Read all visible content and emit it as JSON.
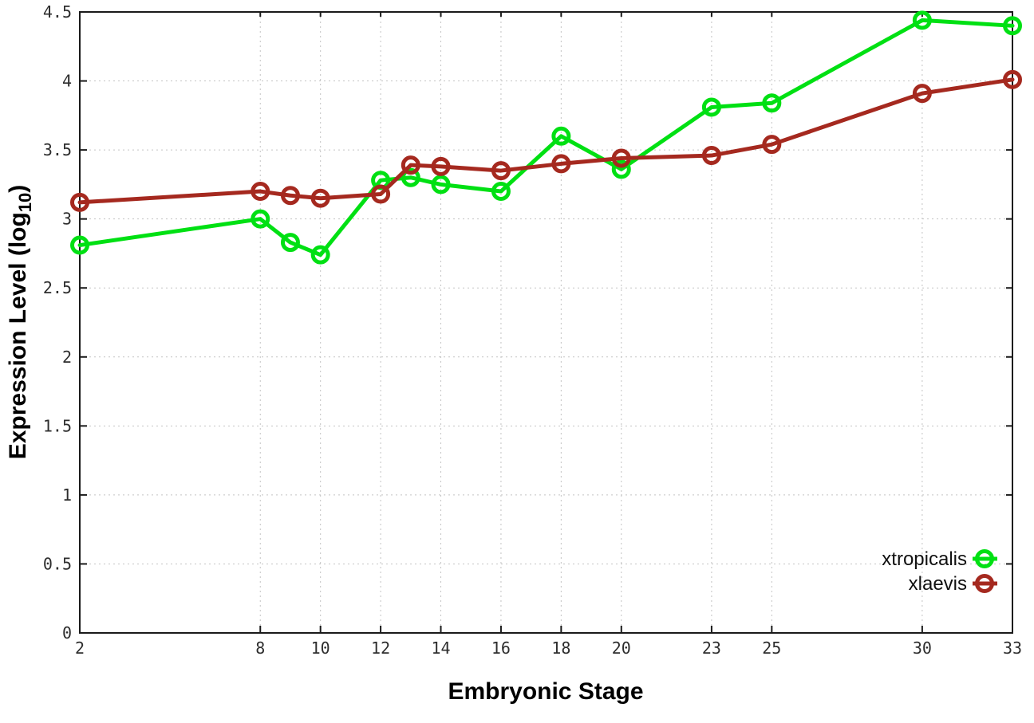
{
  "chart_data": {
    "type": "line",
    "title": "",
    "xlabel": "Embryonic Stage",
    "ylabel": "Expression Level (log10)",
    "ylabel_parts": {
      "base": "Expression Level (log",
      "sub": "10",
      "close": ")"
    },
    "xlim": [
      2,
      33
    ],
    "ylim": [
      0,
      4.5
    ],
    "x_ticks": [
      2,
      8,
      10,
      12,
      14,
      16,
      18,
      20,
      23,
      25,
      30,
      33
    ],
    "y_ticks": [
      0,
      0.5,
      1,
      1.5,
      2,
      2.5,
      3,
      3.5,
      4,
      4.5
    ],
    "grid": "dotted",
    "legend": {
      "position": "inside bottom-right",
      "entries": [
        "xtropicalis",
        "xlaevis"
      ]
    },
    "x": [
      2,
      8,
      9,
      10,
      12,
      13,
      14,
      16,
      18,
      20,
      23,
      25,
      30,
      33
    ],
    "series": [
      {
        "name": "xtropicalis",
        "color": "#00e013",
        "values": [
          2.81,
          3.0,
          2.83,
          2.74,
          3.28,
          3.3,
          3.25,
          3.2,
          3.6,
          3.36,
          3.81,
          3.84,
          4.44,
          4.4
        ]
      },
      {
        "name": "xlaevis",
        "color": "#a5291f",
        "values": [
          3.12,
          3.2,
          3.17,
          3.15,
          3.18,
          3.39,
          3.38,
          3.35,
          3.4,
          3.44,
          3.46,
          3.54,
          3.91,
          4.01
        ]
      }
    ]
  }
}
